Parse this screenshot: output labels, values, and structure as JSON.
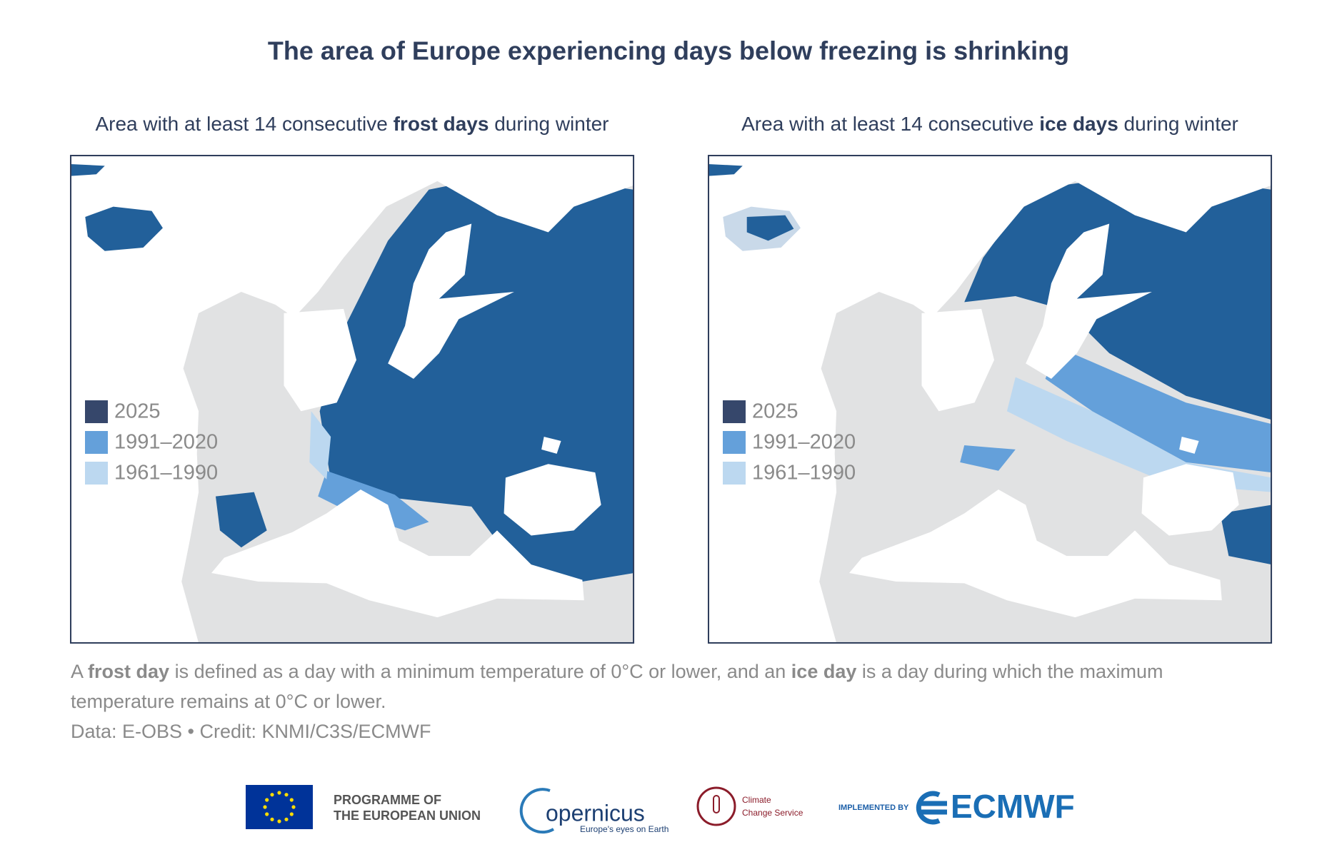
{
  "title": "The area of Europe experiencing days below freezing is shrinking",
  "panels": [
    {
      "subtitle": [
        {
          "text": "Area with at least 14 consecutive "
        },
        {
          "text": "frost days",
          "bold": true
        },
        {
          "text": " during winter"
        }
      ],
      "legend": [
        {
          "label": "2025",
          "color": "#36476b"
        },
        {
          "label": "1991–2020",
          "color": "#64a0da"
        },
        {
          "label": "1961–1990",
          "color": "#bcd8f0"
        }
      ]
    },
    {
      "subtitle": [
        {
          "text": "Area with at least 14 consecutive "
        },
        {
          "text": "ice days",
          "bold": true
        },
        {
          "text": " during winter"
        }
      ],
      "legend": [
        {
          "label": "2025",
          "color": "#36476b"
        },
        {
          "label": "1991–2020",
          "color": "#64a0da"
        },
        {
          "label": "1961–1990",
          "color": "#bcd8f0"
        }
      ]
    }
  ],
  "footnote": [
    [
      {
        "text": "A "
      },
      {
        "text": "frost day",
        "bold": true
      },
      {
        "text": " is defined as a day with a minimum temperature of 0°C or lower, and an "
      },
      {
        "text": "ice day",
        "bold": true
      },
      {
        "text": " is a day during which the maximum"
      }
    ],
    [
      {
        "text": "temperature remains at 0°C or lower."
      }
    ]
  ],
  "source": "Data: E-OBS • Credit: KNMI/C3S/ECMWF",
  "logos": {
    "eu": [
      "PROGRAMME OF",
      "THE EUROPEAN UNION"
    ],
    "copernicus": "opernicus",
    "copernicus_tagline": "Europe's eyes on Earth",
    "c3s": [
      "Climate",
      "Change Service"
    ],
    "implemented": "IMPLEMENTED BY",
    "ecmwf": "ECMWF"
  }
}
